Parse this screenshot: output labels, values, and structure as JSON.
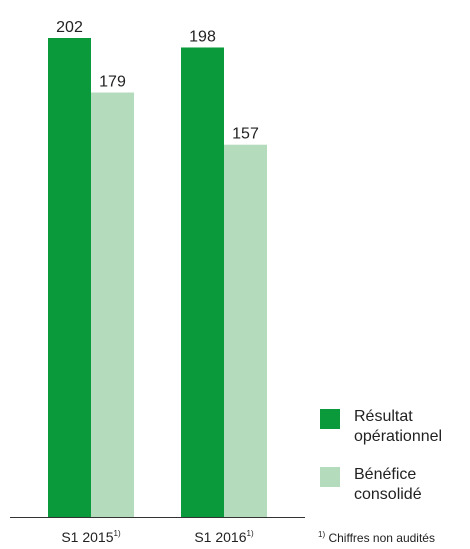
{
  "chart_data": {
    "type": "bar",
    "categories": [
      "S1 2015",
      "S1 2016"
    ],
    "category_footnote_marks": [
      "1)",
      "1)"
    ],
    "series": [
      {
        "name": "Résultat opérationnel",
        "values": [
          202,
          198
        ],
        "color": "#0a9a3c"
      },
      {
        "name": "Bénéfice consolidé",
        "values": [
          179,
          157
        ],
        "color": "#b4dcbc"
      }
    ],
    "ylim": [
      0,
      202
    ],
    "legend_position": "bottom-right",
    "grid": false
  },
  "legend": {
    "items": [
      {
        "label": "Résultat opérationnel",
        "color": "#0a9a3c"
      },
      {
        "label": "Bénéfice consolidé",
        "color": "#b4dcbc"
      }
    ]
  },
  "footnote": {
    "mark": "1)",
    "text": "Chiffres non audités"
  }
}
